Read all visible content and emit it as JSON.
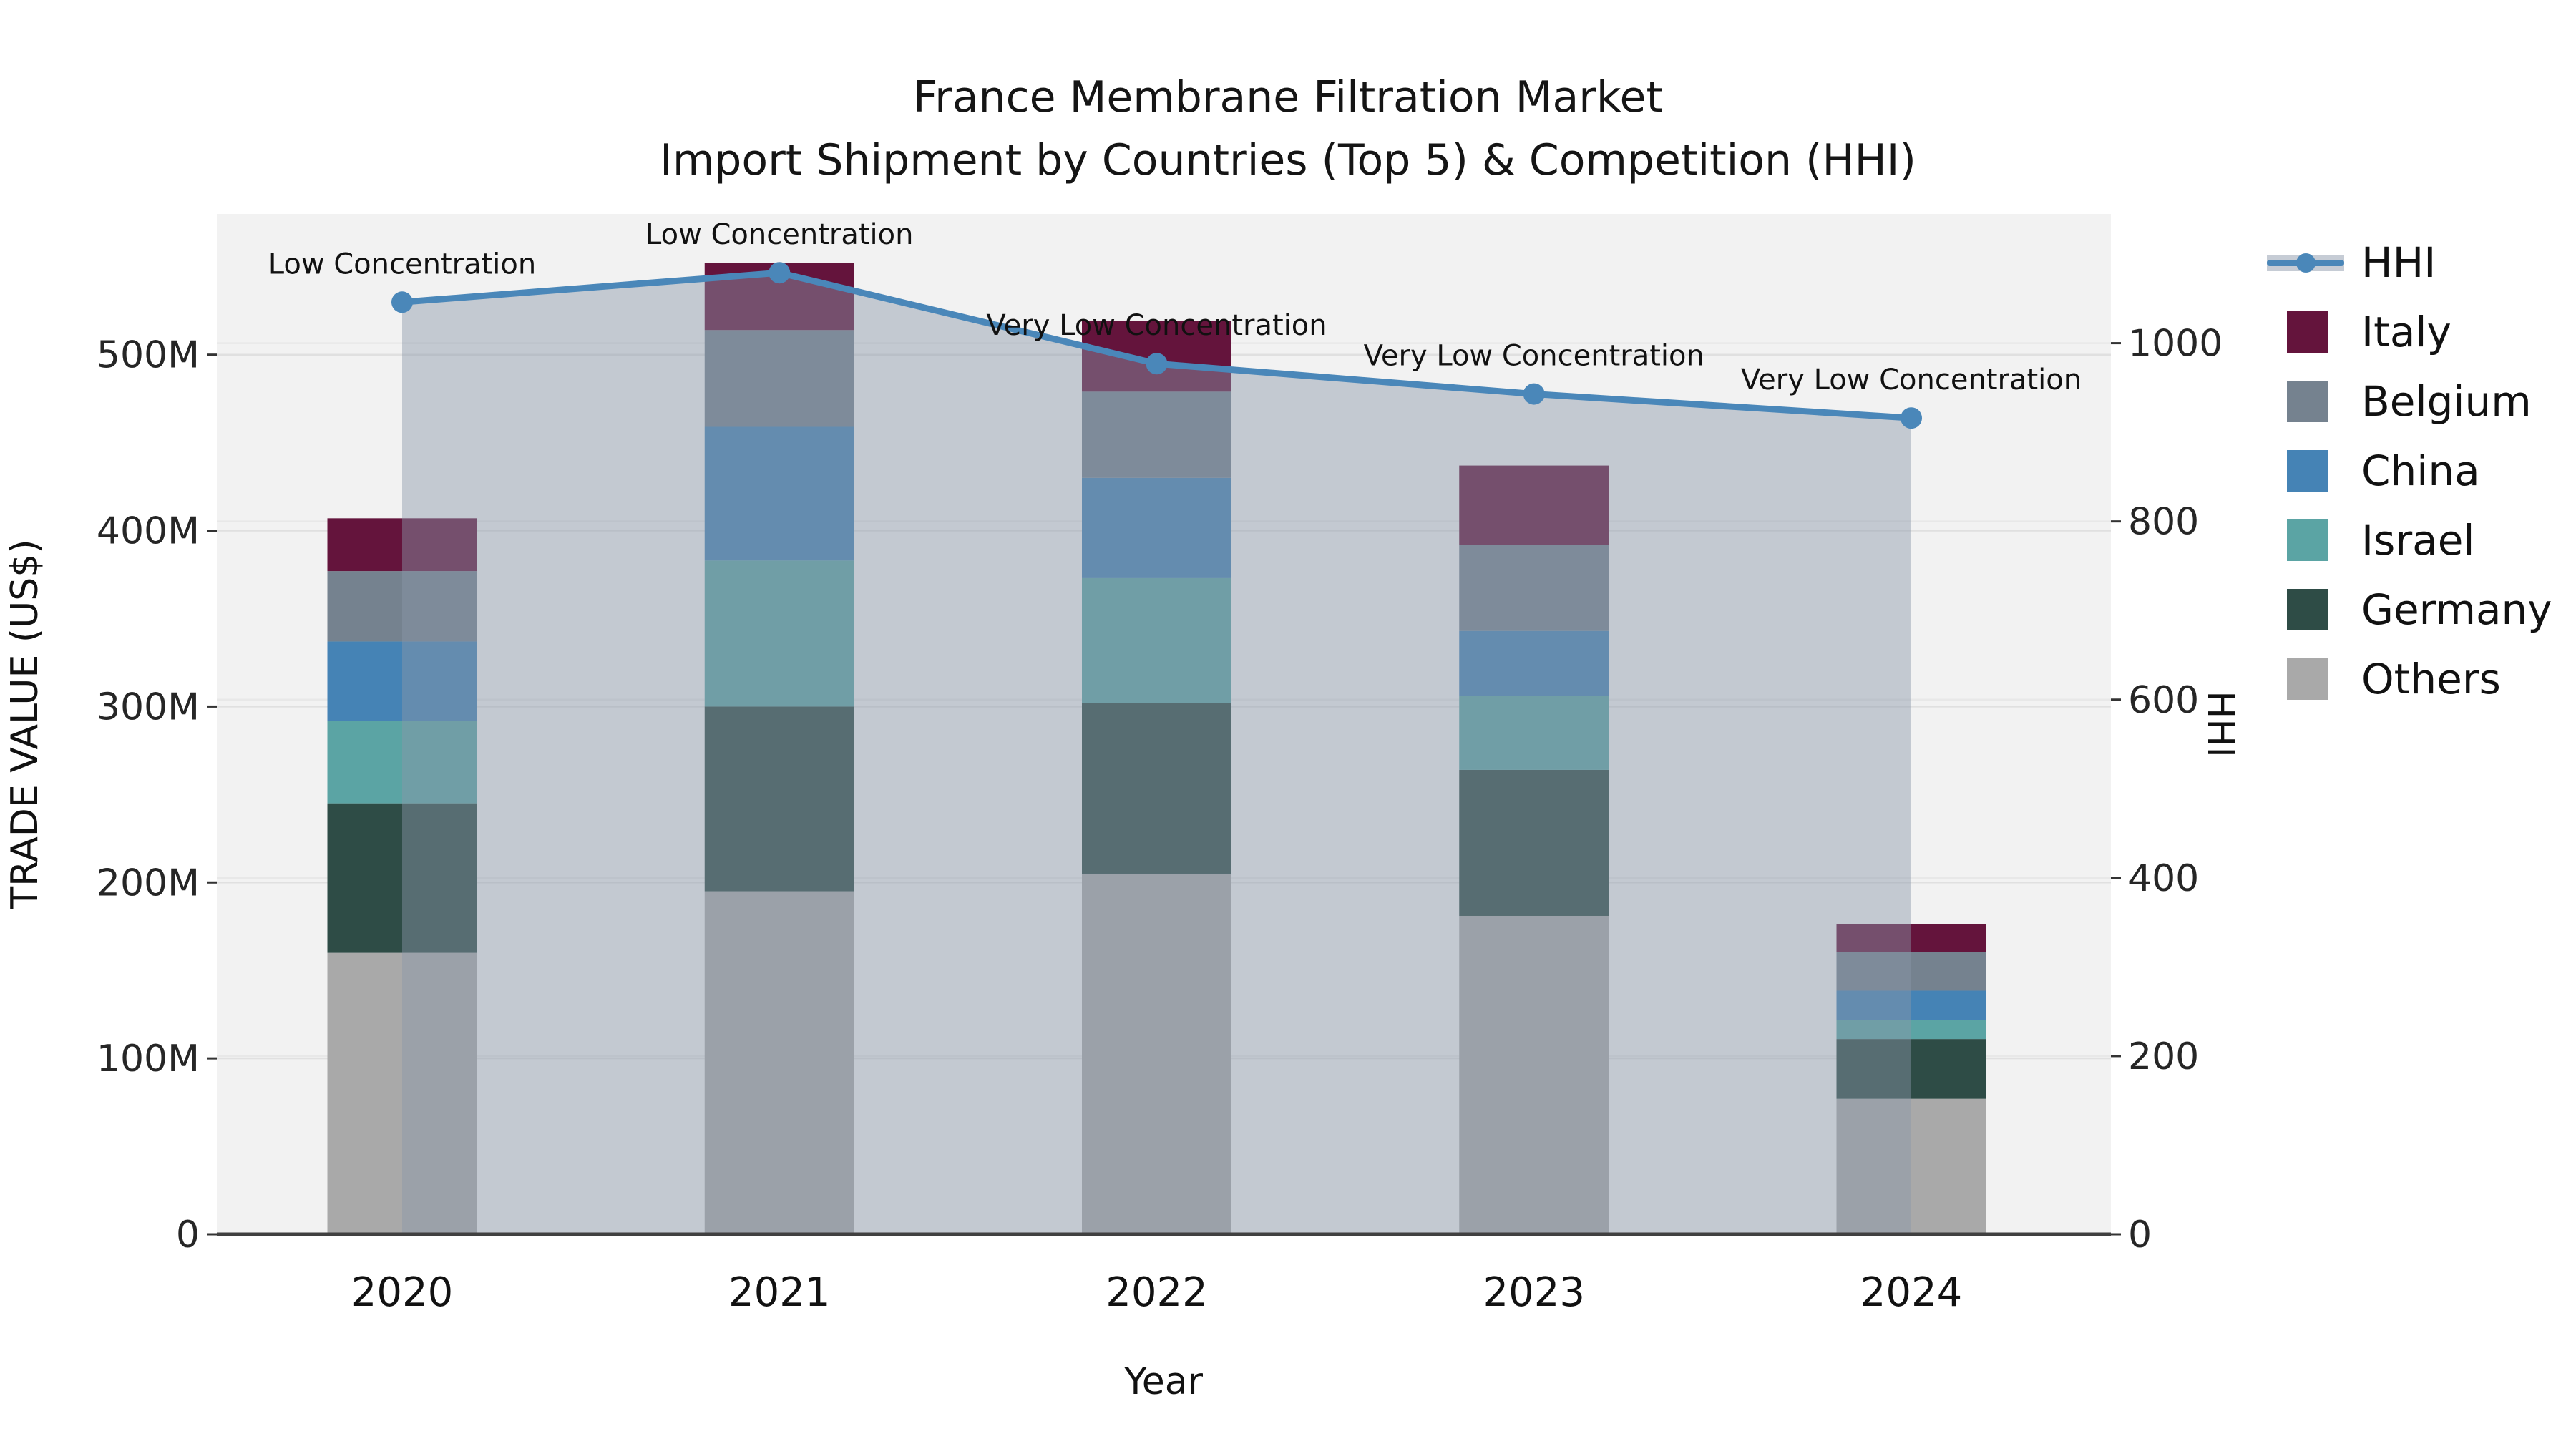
{
  "chart_data": {
    "type": "bar",
    "subtype": "stacked-bar-with-line",
    "title": "France Membrane Filtration Market",
    "subtitle": "Import Shipment by Countries (Top 5) & Competition (HHI)",
    "categories": [
      "2020",
      "2021",
      "2022",
      "2023",
      "2024"
    ],
    "unit": "M US$",
    "series": [
      {
        "name": "Others",
        "color": "#a9a9a9",
        "values": [
          160,
          195,
          205,
          181,
          77
        ]
      },
      {
        "name": "Germany",
        "color": "#2e4c46",
        "values": [
          85,
          105,
          97,
          83,
          34
        ]
      },
      {
        "name": "Israel",
        "color": "#5ba4a4",
        "values": [
          47,
          83,
          71,
          42,
          11
        ]
      },
      {
        "name": "China",
        "color": "#4583b5",
        "values": [
          45,
          76,
          57,
          37,
          16.5
        ]
      },
      {
        "name": "Belgium",
        "color": "#75828f",
        "values": [
          40,
          55,
          49,
          49,
          22
        ]
      },
      {
        "name": "Italy",
        "color": "#64143c",
        "values": [
          30,
          38,
          40,
          45,
          16
        ]
      }
    ],
    "totals": [
      407,
      552,
      519,
      437,
      176.5
    ],
    "line_series": {
      "name": "HHI",
      "color": "#4a87b9",
      "area_color": "rgba(137,150,169,0.45)",
      "values": [
        1046,
        1079,
        977,
        943,
        916
      ],
      "annotations": [
        "Low Concentration",
        "Low Concentration",
        "Very Low Concentration",
        "Very Low Concentration",
        "Very Low Concentration"
      ]
    },
    "xaxis": {
      "label": "Year"
    },
    "yaxis_left": {
      "label": "TRADE VALUE (US$)",
      "lim": [
        0,
        580
      ],
      "ticks": [
        {
          "v": 0,
          "t": "0"
        },
        {
          "v": 100,
          "t": "100M"
        },
        {
          "v": 200,
          "t": "200M"
        },
        {
          "v": 300,
          "t": "300M"
        },
        {
          "v": 400,
          "t": "400M"
        },
        {
          "v": 500,
          "t": "500M"
        }
      ]
    },
    "yaxis_right": {
      "label": "HHI",
      "lim": [
        0,
        1145
      ],
      "ticks": [
        {
          "v": 0,
          "t": "0"
        },
        {
          "v": 200,
          "t": "200"
        },
        {
          "v": 400,
          "t": "400"
        },
        {
          "v": 600,
          "t": "600"
        },
        {
          "v": 800,
          "t": "800"
        },
        {
          "v": 1000,
          "t": "1000"
        }
      ]
    },
    "grid": true,
    "legend_position": "right",
    "plot_bg": "#f2f2f2",
    "spine_color": "#404040"
  },
  "legend": {
    "items": [
      {
        "label": "HHI",
        "type": "line",
        "color": "#4a87b9"
      },
      {
        "label": "Italy",
        "type": "square",
        "color": "#64143c"
      },
      {
        "label": "Belgium",
        "type": "square",
        "color": "#75828f"
      },
      {
        "label": "China",
        "type": "square",
        "color": "#4583b5"
      },
      {
        "label": "Israel",
        "type": "square",
        "color": "#5ba4a4"
      },
      {
        "label": "Germany",
        "type": "square",
        "color": "#2e4c46"
      },
      {
        "label": "Others",
        "type": "square",
        "color": "#a9a9a9"
      }
    ]
  }
}
